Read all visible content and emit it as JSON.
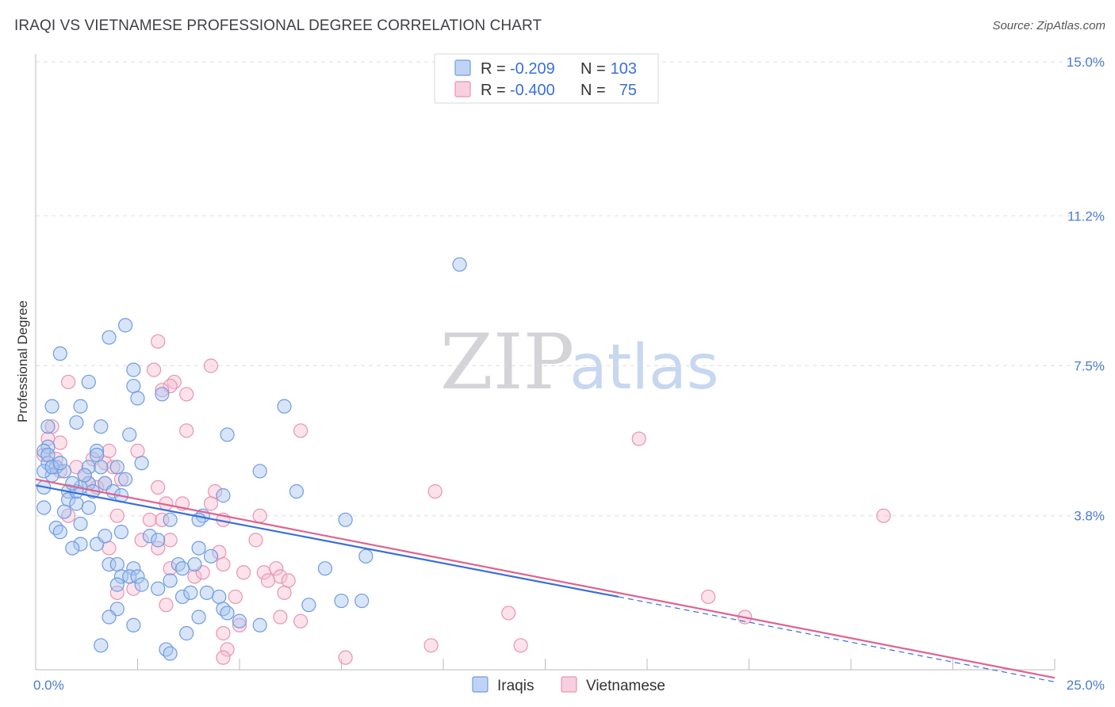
{
  "header": {
    "title": "IRAQI VS VIETNAMESE PROFESSIONAL DEGREE CORRELATION CHART",
    "source": "Source: ZipAtlas.com"
  },
  "watermark": {
    "zip": "ZIP",
    "atlas": "atlas"
  },
  "colors": {
    "iraqis_fill": "#a9c6f0",
    "iraqis_stroke": "#6f9be0",
    "iraqis_line": "#3a6fd8",
    "vietnamese_fill": "#f6bfd3",
    "vietnamese_stroke": "#e894b2",
    "vietnamese_line": "#e0628f",
    "grid": "#dddddd",
    "axis_tick": "#4a7bd0"
  },
  "legend": {
    "rows": [
      {
        "r_label": "R =",
        "r_value": "-0.209",
        "n_label": "N =",
        "n_value": "103"
      },
      {
        "r_label": "R =",
        "r_value": "-0.400",
        "n_label": "N =",
        "n_value": "75"
      }
    ]
  },
  "chart_data": {
    "type": "scatter",
    "title": "IRAQI VS VIETNAMESE PROFESSIONAL DEGREE CORRELATION CHART",
    "xlabel": "",
    "ylabel": "Professional Degree",
    "xlim": [
      0,
      25
    ],
    "ylim": [
      0,
      15
    ],
    "x_tick_labels": [
      "0.0%",
      "25.0%"
    ],
    "y_ticks": [
      {
        "value": 3.8,
        "label": "3.8%"
      },
      {
        "value": 7.5,
        "label": "7.5%"
      },
      {
        "value": 11.2,
        "label": "11.2%"
      },
      {
        "value": 15.0,
        "label": "15.0%"
      }
    ],
    "series": [
      {
        "name": "Iraqis",
        "r": -0.209,
        "n": 103,
        "trend": {
          "x_start": 0,
          "y_start": 4.55,
          "x_end": 14.3,
          "y_end": 1.8,
          "dash_to_x": 25,
          "dash_to_y": -0.3
        },
        "points": [
          [
            10.4,
            10.0
          ],
          [
            2.2,
            8.5
          ],
          [
            0.6,
            7.8
          ],
          [
            1.8,
            8.2
          ],
          [
            2.4,
            7.4
          ],
          [
            1.3,
            7.1
          ],
          [
            2.4,
            7.0
          ],
          [
            3.1,
            6.8
          ],
          [
            2.5,
            6.7
          ],
          [
            0.4,
            6.5
          ],
          [
            1.1,
            6.5
          ],
          [
            6.1,
            6.5
          ],
          [
            1.0,
            6.1
          ],
          [
            1.6,
            6.0
          ],
          [
            0.3,
            6.0
          ],
          [
            2.3,
            5.8
          ],
          [
            4.7,
            5.8
          ],
          [
            0.3,
            5.5
          ],
          [
            1.5,
            5.4
          ],
          [
            0.2,
            5.4
          ],
          [
            1.5,
            5.3
          ],
          [
            2.6,
            5.1
          ],
          [
            0.3,
            5.1
          ],
          [
            0.5,
            5.0
          ],
          [
            0.7,
            4.9
          ],
          [
            1.3,
            5.0
          ],
          [
            2.0,
            5.0
          ],
          [
            1.6,
            5.0
          ],
          [
            0.4,
            4.8
          ],
          [
            5.5,
            4.9
          ],
          [
            1.7,
            4.6
          ],
          [
            1.3,
            4.6
          ],
          [
            0.2,
            4.5
          ],
          [
            1.1,
            4.5
          ],
          [
            0.8,
            4.4
          ],
          [
            1.4,
            4.4
          ],
          [
            1.9,
            4.4
          ],
          [
            4.6,
            4.3
          ],
          [
            6.4,
            4.4
          ],
          [
            2.1,
            4.3
          ],
          [
            0.8,
            4.2
          ],
          [
            1.0,
            4.1
          ],
          [
            0.2,
            4.0
          ],
          [
            1.3,
            4.0
          ],
          [
            0.7,
            3.9
          ],
          [
            3.3,
            3.7
          ],
          [
            4.1,
            3.8
          ],
          [
            4.0,
            3.7
          ],
          [
            7.6,
            3.7
          ],
          [
            1.1,
            3.6
          ],
          [
            0.5,
            3.5
          ],
          [
            0.6,
            3.4
          ],
          [
            2.1,
            3.4
          ],
          [
            2.8,
            3.3
          ],
          [
            3.0,
            3.2
          ],
          [
            1.1,
            3.1
          ],
          [
            0.9,
            3.0
          ],
          [
            1.5,
            3.1
          ],
          [
            4.0,
            3.0
          ],
          [
            4.3,
            2.8
          ],
          [
            8.1,
            2.8
          ],
          [
            1.8,
            2.6
          ],
          [
            2.0,
            2.6
          ],
          [
            3.5,
            2.6
          ],
          [
            2.4,
            2.5
          ],
          [
            3.9,
            2.6
          ],
          [
            3.6,
            2.5
          ],
          [
            7.1,
            2.5
          ],
          [
            2.1,
            2.3
          ],
          [
            2.3,
            2.3
          ],
          [
            2.5,
            2.3
          ],
          [
            3.3,
            2.2
          ],
          [
            2.0,
            2.1
          ],
          [
            2.6,
            2.1
          ],
          [
            3.0,
            2.0
          ],
          [
            4.2,
            1.9
          ],
          [
            3.6,
            1.8
          ],
          [
            3.8,
            1.9
          ],
          [
            4.5,
            1.8
          ],
          [
            7.5,
            1.7
          ],
          [
            8.0,
            1.7
          ],
          [
            6.7,
            1.6
          ],
          [
            4.6,
            1.5
          ],
          [
            2.0,
            1.5
          ],
          [
            4.7,
            1.4
          ],
          [
            1.8,
            1.3
          ],
          [
            4.0,
            1.3
          ],
          [
            2.4,
            1.1
          ],
          [
            5.5,
            1.1
          ],
          [
            3.7,
            0.9
          ],
          [
            1.6,
            0.6
          ],
          [
            3.2,
            0.5
          ],
          [
            3.3,
            0.4
          ],
          [
            0.2,
            4.9
          ],
          [
            0.3,
            5.3
          ],
          [
            0.4,
            5.0
          ],
          [
            0.6,
            5.1
          ],
          [
            1.0,
            4.4
          ],
          [
            1.2,
            4.8
          ],
          [
            0.9,
            4.6
          ],
          [
            2.2,
            4.7
          ],
          [
            5.0,
            1.2
          ],
          [
            1.7,
            3.3
          ]
        ]
      },
      {
        "name": "Vietnamese",
        "r": -0.4,
        "n": 75,
        "trend": {
          "x_start": 0,
          "y_start": 4.7,
          "x_end": 25,
          "y_end": -0.2
        },
        "points": [
          [
            3.0,
            8.1
          ],
          [
            4.3,
            7.5
          ],
          [
            2.9,
            7.4
          ],
          [
            0.8,
            7.1
          ],
          [
            3.4,
            7.1
          ],
          [
            3.3,
            7.0
          ],
          [
            3.1,
            6.9
          ],
          [
            3.7,
            6.8
          ],
          [
            0.4,
            6.0
          ],
          [
            3.7,
            5.9
          ],
          [
            6.5,
            5.9
          ],
          [
            14.8,
            5.7
          ],
          [
            0.3,
            5.7
          ],
          [
            0.6,
            5.6
          ],
          [
            1.8,
            5.4
          ],
          [
            2.5,
            5.4
          ],
          [
            0.2,
            5.3
          ],
          [
            0.5,
            5.2
          ],
          [
            1.4,
            5.2
          ],
          [
            1.7,
            5.1
          ],
          [
            0.4,
            5.0
          ],
          [
            1.0,
            5.0
          ],
          [
            1.9,
            5.0
          ],
          [
            1.2,
            4.8
          ],
          [
            2.1,
            4.7
          ],
          [
            1.3,
            4.6
          ],
          [
            1.7,
            4.6
          ],
          [
            3.0,
            4.5
          ],
          [
            4.4,
            4.4
          ],
          [
            9.8,
            4.4
          ],
          [
            1.5,
            4.5
          ],
          [
            3.2,
            4.1
          ],
          [
            3.6,
            4.1
          ],
          [
            4.3,
            4.1
          ],
          [
            0.8,
            3.8
          ],
          [
            2.0,
            3.8
          ],
          [
            5.5,
            3.8
          ],
          [
            2.8,
            3.7
          ],
          [
            3.1,
            3.7
          ],
          [
            4.6,
            3.7
          ],
          [
            20.8,
            3.8
          ],
          [
            2.6,
            3.2
          ],
          [
            3.3,
            3.2
          ],
          [
            5.4,
            3.2
          ],
          [
            1.8,
            3.0
          ],
          [
            3.0,
            3.0
          ],
          [
            0.6,
            4.9
          ],
          [
            4.5,
            2.9
          ],
          [
            4.6,
            2.6
          ],
          [
            3.3,
            2.5
          ],
          [
            5.1,
            2.4
          ],
          [
            5.6,
            2.4
          ],
          [
            5.9,
            2.5
          ],
          [
            3.9,
            2.3
          ],
          [
            4.1,
            2.4
          ],
          [
            6.0,
            2.3
          ],
          [
            5.7,
            2.2
          ],
          [
            6.2,
            2.2
          ],
          [
            2.4,
            2.0
          ],
          [
            2.0,
            1.9
          ],
          [
            4.9,
            1.8
          ],
          [
            6.1,
            1.9
          ],
          [
            16.5,
            1.8
          ],
          [
            3.2,
            1.6
          ],
          [
            11.6,
            1.4
          ],
          [
            6.0,
            1.3
          ],
          [
            6.5,
            1.2
          ],
          [
            5.0,
            1.1
          ],
          [
            17.4,
            1.3
          ],
          [
            4.6,
            0.9
          ],
          [
            9.7,
            0.6
          ],
          [
            11.9,
            0.6
          ],
          [
            4.7,
            0.5
          ],
          [
            4.6,
            0.3
          ],
          [
            7.6,
            0.3
          ]
        ]
      }
    ],
    "legend_entries": [
      "Iraqis",
      "Vietnamese"
    ]
  }
}
